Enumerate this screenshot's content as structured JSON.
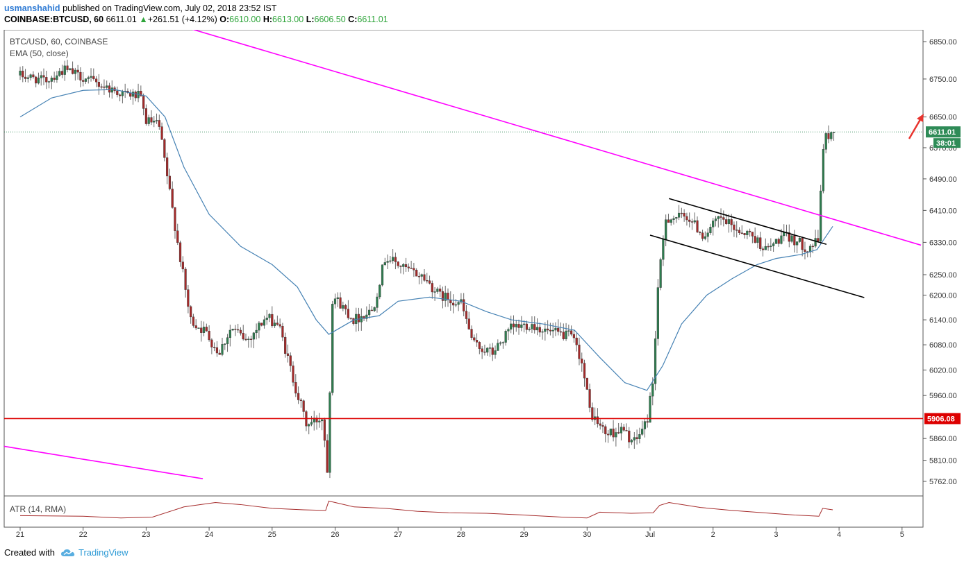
{
  "header": {
    "author": "usmanshahid",
    "published": "published on TradingView.com, July 02, 2018 23:52 IST",
    "symbol": "COINBASE:BTCUSD, 60",
    "last": "6611.01",
    "change_arrow": "▲",
    "change": "+261.51 (+4.12%)",
    "o_label": "O:",
    "o_value": "6610.00",
    "h_label": "H:",
    "h_value": "6613.00",
    "l_label": "L:",
    "l_value": "6606.50",
    "c_label": "C:",
    "c_value": "6611.01"
  },
  "legend": {
    "symbol": "BTC/USD, 60, COINBASE",
    "ema": "EMA (50, close)",
    "atr": "ATR (14, RMA)"
  },
  "footer": {
    "created_with": "Created with",
    "brand": "TradingView",
    "logo_icon": "tradingview-cloud-icon"
  },
  "colors": {
    "up": "#2e7d4f",
    "down": "#a52a2a",
    "ema": "#4682b4",
    "trendline": "#ff00ff",
    "support": "#dd0000",
    "price_label_bg": "#2e8b57",
    "channel": "#000000",
    "arrow": "#e8342e",
    "atr": "#a52a2a"
  },
  "chart_data": {
    "type": "candlestick",
    "title": "BTC/USD, 60, COINBASE",
    "x_ticks": [
      "21",
      "22",
      "23",
      "24",
      "25",
      "26",
      "27",
      "28",
      "29",
      "30",
      "Jul",
      "2",
      "3",
      "4",
      "5"
    ],
    "y_ticks": [
      6850,
      6750,
      6650,
      6570,
      6490,
      6410,
      6330,
      6250,
      6200,
      6140,
      6080,
      6020,
      5960,
      5860,
      5810,
      5762
    ],
    "y_tick_labels": [
      "6850.00",
      "6750.00",
      "6650.00",
      "6570.00",
      "6490.00",
      "6410.00",
      "6330.00",
      "6250.00",
      "6200.00",
      "6140.00",
      "6080.00",
      "6020.00",
      "5960.00",
      "5860.00",
      "5810.00",
      "5762.00"
    ],
    "price_scale": "log",
    "current_price": {
      "value": 6611.01,
      "label": "6611.01",
      "countdown": "38:01"
    },
    "support_line": {
      "value": 5906.08,
      "label": "5906.08"
    },
    "anchors": [
      {
        "day": 20.0,
        "price": 6760
      },
      {
        "day": 20.4,
        "price": 6745
      },
      {
        "day": 20.7,
        "price": 6775
      },
      {
        "day": 21.2,
        "price": 6740
      },
      {
        "day": 21.6,
        "price": 6712
      },
      {
        "day": 21.9,
        "price": 6705
      },
      {
        "day": 22.0,
        "price": 6640
      },
      {
        "day": 22.2,
        "price": 6630
      },
      {
        "day": 22.35,
        "price": 6480
      },
      {
        "day": 22.5,
        "price": 6330
      },
      {
        "day": 22.7,
        "price": 6140
      },
      {
        "day": 22.95,
        "price": 6110
      },
      {
        "day": 23.15,
        "price": 6060
      },
      {
        "day": 23.35,
        "price": 6120
      },
      {
        "day": 23.6,
        "price": 6090
      },
      {
        "day": 23.9,
        "price": 6145
      },
      {
        "day": 24.1,
        "price": 6130
      },
      {
        "day": 24.35,
        "price": 5990
      },
      {
        "day": 24.55,
        "price": 5890
      },
      {
        "day": 24.8,
        "price": 5910
      },
      {
        "day": 24.88,
        "price": 5785
      },
      {
        "day": 24.96,
        "price": 6200
      },
      {
        "day": 25.3,
        "price": 6140
      },
      {
        "day": 25.6,
        "price": 6165
      },
      {
        "day": 25.8,
        "price": 6295
      },
      {
        "day": 26.1,
        "price": 6265
      },
      {
        "day": 26.4,
        "price": 6245
      },
      {
        "day": 26.65,
        "price": 6200
      },
      {
        "day": 27.0,
        "price": 6180
      },
      {
        "day": 27.2,
        "price": 6080
      },
      {
        "day": 27.5,
        "price": 6060
      },
      {
        "day": 27.8,
        "price": 6120
      },
      {
        "day": 28.1,
        "price": 6130
      },
      {
        "day": 28.4,
        "price": 6110
      },
      {
        "day": 28.75,
        "price": 6100
      },
      {
        "day": 28.9,
        "price": 6050
      },
      {
        "day": 29.05,
        "price": 5920
      },
      {
        "day": 29.3,
        "price": 5870
      },
      {
        "day": 29.55,
        "price": 5880
      },
      {
        "day": 29.75,
        "price": 5850
      },
      {
        "day": 29.95,
        "price": 5900
      },
      {
        "day": 30.05,
        "price": 6000
      },
      {
        "day": 30.12,
        "price": 6210
      },
      {
        "day": 30.25,
        "price": 6390
      },
      {
        "day": 30.6,
        "price": 6395
      },
      {
        "day": 30.85,
        "price": 6345
      },
      {
        "day": 31.1,
        "price": 6390
      },
      {
        "day": 31.4,
        "price": 6360
      },
      {
        "day": 31.6,
        "price": 6350
      },
      {
        "day": 31.85,
        "price": 6310
      },
      {
        "day": 32.1,
        "price": 6345
      },
      {
        "day": 32.3,
        "price": 6335
      },
      {
        "day": 32.5,
        "price": 6315
      },
      {
        "day": 32.68,
        "price": 6335
      },
      {
        "day": 32.73,
        "price": 6560
      },
      {
        "day": 32.8,
        "price": 6600
      },
      {
        "day": 32.93,
        "price": 6611
      }
    ],
    "ema_line": [
      {
        "day": 20.0,
        "price": 6650
      },
      {
        "day": 20.5,
        "price": 6700
      },
      {
        "day": 21.0,
        "price": 6720
      },
      {
        "day": 21.5,
        "price": 6722
      },
      {
        "day": 22.0,
        "price": 6705
      },
      {
        "day": 22.3,
        "price": 6650
      },
      {
        "day": 22.6,
        "price": 6520
      },
      {
        "day": 23.0,
        "price": 6400
      },
      {
        "day": 23.5,
        "price": 6320
      },
      {
        "day": 24.0,
        "price": 6275
      },
      {
        "day": 24.4,
        "price": 6220
      },
      {
        "day": 24.7,
        "price": 6140
      },
      {
        "day": 24.9,
        "price": 6105
      },
      {
        "day": 25.3,
        "price": 6140
      },
      {
        "day": 25.7,
        "price": 6150
      },
      {
        "day": 26.0,
        "price": 6185
      },
      {
        "day": 26.5,
        "price": 6195
      },
      {
        "day": 27.0,
        "price": 6185
      },
      {
        "day": 27.4,
        "price": 6160
      },
      {
        "day": 27.8,
        "price": 6140
      },
      {
        "day": 28.3,
        "price": 6130
      },
      {
        "day": 28.8,
        "price": 6115
      },
      {
        "day": 29.2,
        "price": 6050
      },
      {
        "day": 29.6,
        "price": 5990
      },
      {
        "day": 29.95,
        "price": 5972
      },
      {
        "day": 30.2,
        "price": 6030
      },
      {
        "day": 30.5,
        "price": 6130
      },
      {
        "day": 30.9,
        "price": 6200
      },
      {
        "day": 31.3,
        "price": 6240
      },
      {
        "day": 31.7,
        "price": 6275
      },
      {
        "day": 32.0,
        "price": 6290
      },
      {
        "day": 32.4,
        "price": 6300
      },
      {
        "day": 32.65,
        "price": 6312
      },
      {
        "day": 32.9,
        "price": 6370
      }
    ],
    "atr": [
      {
        "day": 20.0,
        "value": 30
      },
      {
        "day": 21.0,
        "value": 28
      },
      {
        "day": 21.6,
        "value": 22
      },
      {
        "day": 22.1,
        "value": 25
      },
      {
        "day": 22.6,
        "value": 60
      },
      {
        "day": 23.1,
        "value": 75
      },
      {
        "day": 23.5,
        "value": 68
      },
      {
        "day": 24.0,
        "value": 55
      },
      {
        "day": 24.5,
        "value": 50
      },
      {
        "day": 24.85,
        "value": 48
      },
      {
        "day": 24.9,
        "value": 80
      },
      {
        "day": 25.3,
        "value": 60
      },
      {
        "day": 25.8,
        "value": 55
      },
      {
        "day": 26.3,
        "value": 45
      },
      {
        "day": 26.8,
        "value": 40
      },
      {
        "day": 27.4,
        "value": 38
      },
      {
        "day": 28.0,
        "value": 32
      },
      {
        "day": 28.6,
        "value": 25
      },
      {
        "day": 29.0,
        "value": 22
      },
      {
        "day": 29.2,
        "value": 42
      },
      {
        "day": 29.7,
        "value": 38
      },
      {
        "day": 30.05,
        "value": 40
      },
      {
        "day": 30.15,
        "value": 65
      },
      {
        "day": 30.3,
        "value": 75
      },
      {
        "day": 30.8,
        "value": 58
      },
      {
        "day": 31.3,
        "value": 48
      },
      {
        "day": 31.8,
        "value": 40
      },
      {
        "day": 32.3,
        "value": 32
      },
      {
        "day": 32.68,
        "value": 28
      },
      {
        "day": 32.74,
        "value": 55
      },
      {
        "day": 32.9,
        "value": 50
      }
    ],
    "trendlines": [
      {
        "name": "upper-resistance",
        "from": {
          "day": 22.7,
          "price": 6885
        },
        "to": {
          "day": 34.3,
          "price": 6323
        }
      },
      {
        "name": "lower-trendline",
        "from": {
          "day": 20.0,
          "price": 5842
        },
        "to": {
          "day": 22.9,
          "price": 5768
        }
      },
      {
        "name": "channel-top",
        "from": {
          "day": 30.3,
          "price": 6440
        },
        "to": {
          "day": 32.8,
          "price": 6325
        }
      },
      {
        "name": "channel-bottom",
        "from": {
          "day": 30.0,
          "price": 6348
        },
        "to": {
          "day": 33.4,
          "price": 6194
        }
      }
    ],
    "x_start_day": 20.0
  }
}
